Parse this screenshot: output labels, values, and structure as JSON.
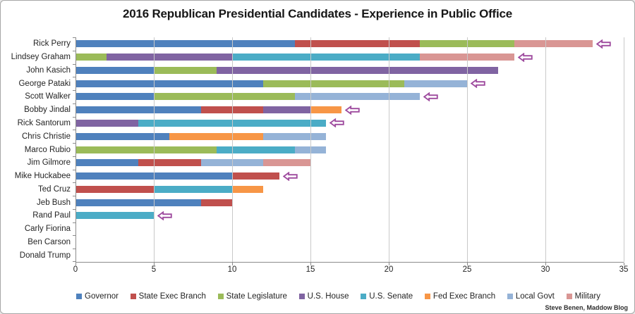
{
  "window": {
    "credit": "Steve Benen, Maddow Blog"
  },
  "chart_data": {
    "type": "bar",
    "orientation": "horizontal",
    "stacked": true,
    "title": "2016 Republican Presidential Candidates - Experience in Public Office",
    "xlabel": "",
    "ylabel": "",
    "xlim": [
      0,
      35
    ],
    "xticks": [
      0,
      5,
      10,
      15,
      20,
      25,
      30,
      35
    ],
    "grid": "vertical",
    "legend_position": "bottom",
    "gridline_color": "#c9c9c9",
    "axis_color": "#8c8c8c",
    "arrow_color": "#9e4b9e",
    "arrow_fill": "#fdfbfd",
    "categories": [
      "Rick Perry",
      "Lindsey Graham",
      "John Kasich",
      "George Pataki",
      "Scott Walker",
      "Bobby Jindal",
      "Rick Santorum",
      "Chris Christie",
      "Marco Rubio",
      "Jim Gilmore",
      "Mike Huckabee",
      "Ted Cruz",
      "Jeb Bush",
      "Rand Paul",
      "Carly Fiorina",
      "Ben Carson",
      "Donald Trump"
    ],
    "series": [
      {
        "name": "Governor",
        "color": "#4F81BD",
        "values": [
          14,
          0,
          5,
          12,
          5,
          8,
          0,
          6,
          0,
          4,
          10,
          0,
          8,
          0,
          0,
          0,
          0
        ]
      },
      {
        "name": "State Exec Branch",
        "color": "#C0504D",
        "values": [
          8,
          0,
          0,
          0,
          0,
          4,
          0,
          0,
          0,
          4,
          3,
          5,
          2,
          0,
          0,
          0,
          0
        ]
      },
      {
        "name": "State Legislature",
        "color": "#9BBB59",
        "values": [
          6,
          2,
          4,
          9,
          9,
          0,
          0,
          0,
          9,
          0,
          0,
          0,
          0,
          0,
          0,
          0,
          0
        ]
      },
      {
        "name": "U.S. House",
        "color": "#8064A2",
        "values": [
          0,
          8,
          18,
          0,
          0,
          3,
          4,
          0,
          0,
          0,
          0,
          0,
          0,
          0,
          0,
          0,
          0
        ]
      },
      {
        "name": "U.S. Senate",
        "color": "#4BACC6",
        "values": [
          0,
          12,
          0,
          0,
          0,
          0,
          12,
          0,
          5,
          0,
          0,
          5,
          0,
          5,
          0,
          0,
          0
        ]
      },
      {
        "name": "Fed Exec Branch",
        "color": "#F79646",
        "values": [
          0,
          0,
          0,
          0,
          0,
          2,
          0,
          6,
          0,
          0,
          0,
          2,
          0,
          0,
          0,
          0,
          0
        ]
      },
      {
        "name": "Local Govt",
        "color": "#95B3D7",
        "values": [
          0,
          0,
          0,
          4,
          8,
          0,
          0,
          4,
          2,
          4,
          0,
          0,
          0,
          0,
          0,
          0,
          0
        ]
      },
      {
        "name": "Military",
        "color": "#D99694",
        "values": [
          5,
          6,
          0,
          0,
          0,
          0,
          0,
          0,
          0,
          3,
          0,
          0,
          0,
          0,
          0,
          0,
          0
        ]
      }
    ],
    "row_totals": [
      33,
      28,
      27,
      25,
      22,
      17,
      16,
      16,
      16,
      15,
      13,
      12,
      10,
      5,
      0,
      0,
      0
    ],
    "dropout_arrows": [
      true,
      true,
      false,
      true,
      true,
      true,
      true,
      false,
      false,
      false,
      true,
      false,
      false,
      true,
      false,
      false,
      false
    ]
  }
}
